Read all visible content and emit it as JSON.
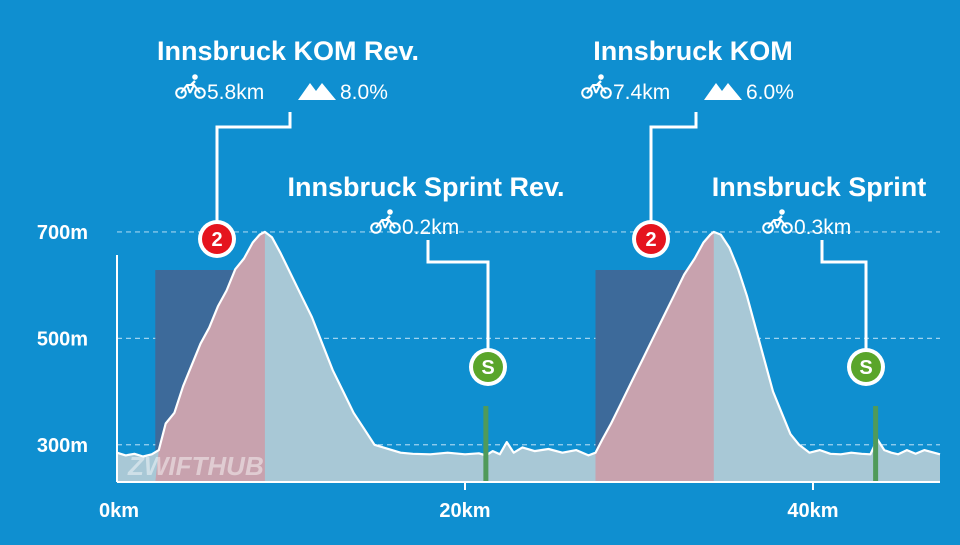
{
  "watermark": "ZWIFTHUB",
  "colors": {
    "background": "#0f8fd0",
    "profile_fill": "#a8c8d6",
    "profile_stroke": "#ffffff",
    "kom_band": "#3d6a9a",
    "kom_climb": "#c8a2ae",
    "kom_badge": "#e5141e",
    "sprint_line": "#4f9a5a",
    "sprint_badge": "#5aa52a",
    "gridline": "#9fd3ef"
  },
  "segments": [
    {
      "id": "kom-rev",
      "type": "kom",
      "badge": "2",
      "title": "Innsbruck KOM Rev.",
      "distance": "5.8km",
      "grade": "8.0%",
      "start_km": 2.2,
      "end_km": 8.5,
      "bike_icon": "bike-icon",
      "mountain_icon": "mountain-icon"
    },
    {
      "id": "sprint-rev",
      "type": "sprint",
      "badge": "S",
      "title": "Innsbruck Sprint Rev.",
      "distance": "0.2km",
      "at_km": 21.2,
      "bike_icon": "bike-icon"
    },
    {
      "id": "kom",
      "type": "kom",
      "badge": "2",
      "title": "Innsbruck KOM",
      "distance": "7.4km",
      "grade": "6.0%",
      "start_km": 27.5,
      "end_km": 34.3,
      "bike_icon": "bike-icon",
      "mountain_icon": "mountain-icon"
    },
    {
      "id": "sprint",
      "type": "sprint",
      "badge": "S",
      "title": "Innsbruck Sprint",
      "distance": "0.3km",
      "at_km": 43.6,
      "bike_icon": "bike-icon"
    }
  ],
  "chart_data": {
    "type": "area",
    "xlabel": "",
    "ylabel": "",
    "x_unit": "km",
    "y_unit": "m",
    "xlim": [
      0,
      47.3
    ],
    "ylim": [
      230,
      760
    ],
    "x_ticks": [
      {
        "value": 0,
        "label": "0km"
      },
      {
        "value": 20,
        "label": "20km"
      },
      {
        "value": 40,
        "label": "40km"
      }
    ],
    "y_ticks": [
      {
        "value": 300,
        "label": "300m"
      },
      {
        "value": 500,
        "label": "500m"
      },
      {
        "value": 700,
        "label": "700m"
      }
    ],
    "grid": "horizontal dashed",
    "series": [
      {
        "x": [
          0,
          0.5,
          1,
          1.5,
          2,
          2.4,
          2.8,
          3.3,
          3.8,
          4.3,
          4.8,
          5.3,
          5.8,
          6.3,
          6.8,
          7.3,
          7.8,
          8.2,
          8.5,
          8.9,
          9.4,
          10,
          10.6,
          11.2,
          11.8,
          12.4,
          13,
          13.6,
          14.2,
          14.8,
          15.3,
          15.8,
          16.3,
          17,
          18,
          19,
          20,
          20.8,
          21.2,
          21.6,
          22,
          22.4,
          22.8,
          23.3,
          24,
          24.8,
          25.6,
          26.4,
          27.1,
          27.5,
          27.9,
          28.4,
          29,
          29.6,
          30.2,
          30.8,
          31.4,
          32,
          32.6,
          33.2,
          33.7,
          34.1,
          34.3,
          34.7,
          35.2,
          35.7,
          36.2,
          36.7,
          37.2,
          37.7,
          38.2,
          38.7,
          39.2,
          39.8,
          40.4,
          41,
          41.6,
          42.2,
          42.8,
          43.3,
          43.7,
          44.1,
          44.5,
          44.9,
          45.4,
          45.9,
          46.4,
          47.3
        ],
        "y": [
          285,
          280,
          283,
          278,
          282,
          290,
          340,
          360,
          410,
          450,
          490,
          520,
          560,
          590,
          630,
          650,
          680,
          695,
          700,
          690,
          660,
          620,
          580,
          540,
          490,
          440,
          400,
          360,
          330,
          300,
          295,
          290,
          285,
          283,
          282,
          285,
          282,
          284,
          280,
          288,
          282,
          305,
          285,
          295,
          288,
          292,
          285,
          290,
          280,
          285,
          310,
          340,
          380,
          420,
          460,
          500,
          540,
          580,
          620,
          650,
          680,
          695,
          700,
          695,
          670,
          630,
          580,
          520,
          460,
          400,
          360,
          320,
          300,
          285,
          290,
          283,
          282,
          285,
          283,
          282,
          310,
          290,
          285,
          282,
          290,
          283,
          290,
          282
        ]
      }
    ]
  }
}
